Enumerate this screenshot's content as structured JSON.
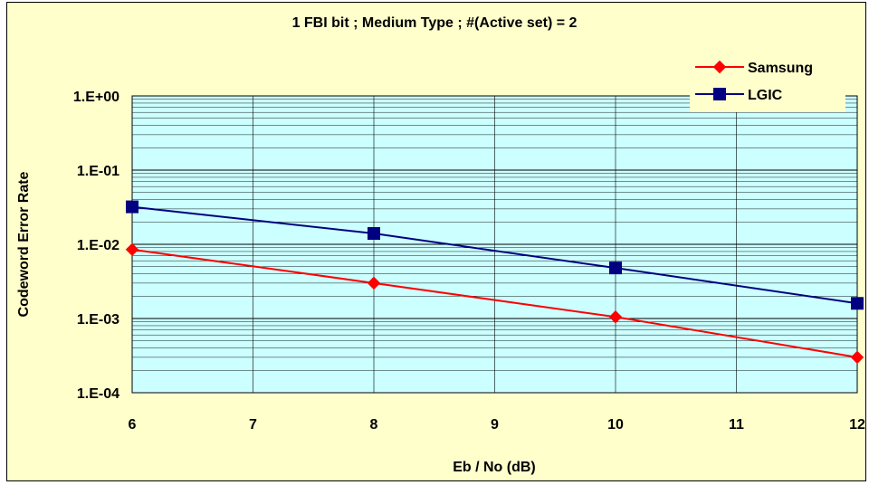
{
  "chart_data": {
    "type": "line",
    "title": "1 FBI bit ; Medium Type ; #(Active set) = 2",
    "xlabel": "Eb / No (dB)",
    "ylabel": "Codeword Error Rate",
    "x_ticks": [
      "6",
      "7",
      "8",
      "9",
      "10",
      "11",
      "12"
    ],
    "xlim": [
      6,
      12
    ],
    "y_scale": "log",
    "ylim": [
      0.0001,
      1
    ],
    "y_ticks": [
      {
        "value": 1,
        "label": "1.E+00"
      },
      {
        "value": 0.1,
        "label": "1.E-01"
      },
      {
        "value": 0.01,
        "label": "1.E-02"
      },
      {
        "value": 0.001,
        "label": "1.E-03"
      },
      {
        "value": 0.0001,
        "label": "1.E-04"
      }
    ],
    "grid": true,
    "legend_position": "top-right",
    "series": [
      {
        "name": "Samsung",
        "color": "#ff0000",
        "marker": "diamond",
        "x": [
          6,
          8,
          10,
          12
        ],
        "y": [
          0.0085,
          0.003,
          0.00105,
          0.0003
        ]
      },
      {
        "name": "LGIC",
        "color": "#000080",
        "marker": "square",
        "x": [
          6,
          8,
          10,
          12
        ],
        "y": [
          0.032,
          0.014,
          0.0048,
          0.0016
        ]
      }
    ],
    "colors": {
      "plot_background": "#ccffff",
      "chart_background": "#ffffcc",
      "grid": "#000000"
    }
  }
}
